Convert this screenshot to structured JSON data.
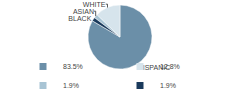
{
  "chart_data": {
    "type": "pie",
    "categories": [
      "HISPANIC",
      "WHITE",
      "ASIAN",
      "BLACK"
    ],
    "values": [
      83.5,
      12.8,
      1.9,
      1.9
    ],
    "value_labels": [
      "83.5%",
      "12.8%",
      "1.9%",
      "1.9%"
    ],
    "colors": [
      "#6b8fa8",
      "#d6e4ec",
      "#a8c4d4",
      "#1a3a5c"
    ],
    "legend": "bottom"
  }
}
